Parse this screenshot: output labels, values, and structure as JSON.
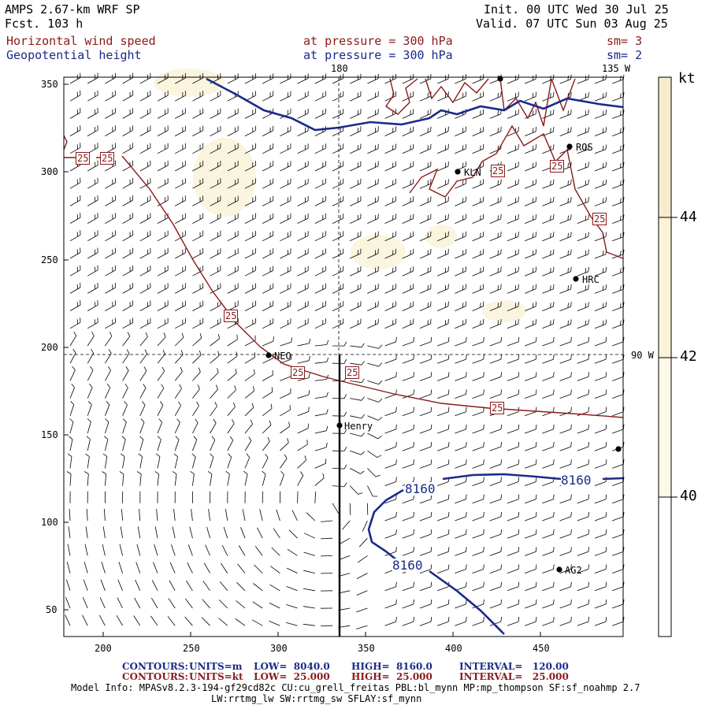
{
  "header": {
    "model": "AMPS 2.67-km WRF SP",
    "forecast": "Fcst. 103 h",
    "init": "Init. 00 UTC Wed 30 Jul 25",
    "valid": "Valid. 07 UTC Sun 03 Aug 25",
    "field1_name": "Horizontal wind speed",
    "field1_level": "at pressure = 300 hPa",
    "field1_sm": "sm= 3",
    "field2_name": "Geopotential height",
    "field2_level": "at pressure = 300 hPa",
    "field2_sm": "sm= 2"
  },
  "map": {
    "top_labels": [
      "180",
      "135 W"
    ],
    "right_label": "90 W",
    "x_ticks": [
      "200",
      "250",
      "300",
      "350",
      "400",
      "450"
    ],
    "y_ticks": [
      "350",
      "300",
      "250",
      "200",
      "150",
      "100",
      "50"
    ],
    "stations": [
      "ROS",
      "KLN",
      "HRC",
      "NEO",
      "Henry",
      "AG2"
    ],
    "height_contour_label": "8160",
    "speed_contour_label": "25"
  },
  "colorbar": {
    "unit": "kt",
    "labels": [
      "44",
      "42",
      "40"
    ],
    "colors": [
      "#f6ecce",
      "#faf3d9",
      "#fdf9e8",
      "#ffffff"
    ]
  },
  "footer": {
    "c1_name": "CONTOURS:",
    "c1_units": "UNITS=m",
    "c1_low": "LOW=  8040.0",
    "c1_high": "HIGH=  8160.0",
    "c1_interval": "INTERVAL=   120.00",
    "c2_name": "CONTOURS:",
    "c2_units": "UNITS=kt",
    "c2_low": "LOW=  25.000",
    "c2_high": "HIGH=  25.000",
    "c2_interval": "INTERVAL=   25.000",
    "model_info_1": "Model Info: MPASv8.2.3-194-gf29cd82c CU:cu_grell_freitas PBL:bl_mynn MP:mp_thompson SF:sf_noahmp 2.7",
    "model_info_2": "LW:rrtmg_lw SW:rrtmg_sw SFLAY:sf_mynn"
  },
  "colors": {
    "height_contour": "#1a2a8a",
    "speed_contour": "#8b1a1a",
    "coast": "#8b1a1a",
    "barbs": "#000000"
  }
}
